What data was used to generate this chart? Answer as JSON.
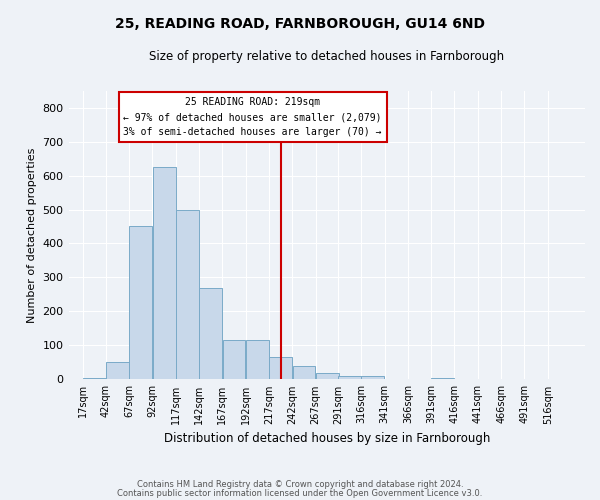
{
  "title": "25, READING ROAD, FARNBOROUGH, GU14 6ND",
  "subtitle": "Size of property relative to detached houses in Farnborough",
  "xlabel": "Distribution of detached houses by size in Farnborough",
  "ylabel": "Number of detached properties",
  "footer_line1": "Contains HM Land Registry data © Crown copyright and database right 2024.",
  "footer_line2": "Contains public sector information licensed under the Open Government Licence v3.0.",
  "annotation_line1": "25 READING ROAD: 219sqm",
  "annotation_line2": "← 97% of detached houses are smaller (2,079)",
  "annotation_line3": "3% of semi-detached houses are larger (70) →",
  "vline_color": "#cc0000",
  "annotation_box_color": "#cc0000",
  "bar_color": "#c8d8ea",
  "bar_edge_color": "#7aaac8",
  "background_color": "#eef2f7",
  "ylim": [
    0,
    850
  ],
  "yticks": [
    0,
    100,
    200,
    300,
    400,
    500,
    600,
    700,
    800
  ],
  "bin_labels": [
    "17sqm",
    "42sqm",
    "67sqm",
    "92sqm",
    "117sqm",
    "142sqm",
    "167sqm",
    "192sqm",
    "217sqm",
    "242sqm",
    "267sqm",
    "291sqm",
    "316sqm",
    "341sqm",
    "366sqm",
    "391sqm",
    "416sqm",
    "441sqm",
    "466sqm",
    "491sqm",
    "516sqm"
  ],
  "bar_heights": [
    5,
    50,
    450,
    625,
    500,
    270,
    115,
    115,
    65,
    40,
    20,
    10,
    10,
    0,
    0,
    5,
    0,
    0,
    0,
    0,
    0
  ],
  "bin_edges": [
    17,
    42,
    67,
    92,
    117,
    142,
    167,
    192,
    217,
    242,
    267,
    291,
    316,
    341,
    366,
    391,
    416,
    441,
    466,
    491,
    516
  ],
  "bin_width": 25,
  "vline_position": 217
}
